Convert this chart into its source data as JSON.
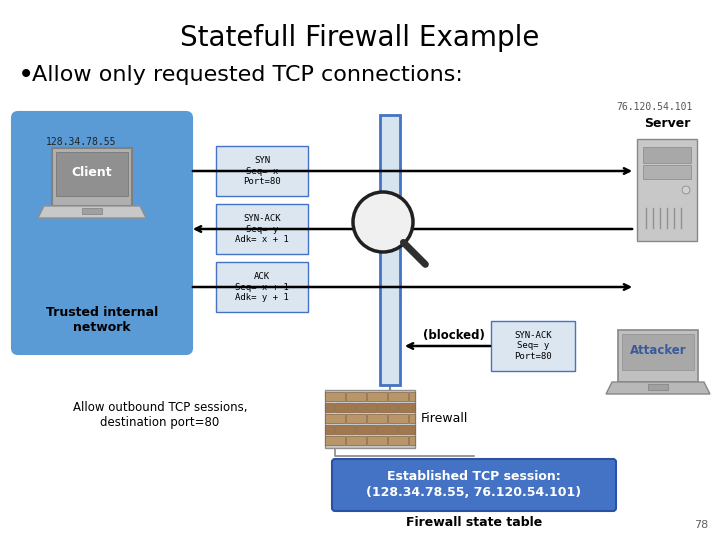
{
  "title": "Statefull Firewall Example",
  "bullet": "Allow only requested TCP connections:",
  "ip_server": "76.120.54.101",
  "ip_client": "128.34.78.55",
  "bg_color": "#ffffff",
  "title_fontsize": 20,
  "bullet_fontsize": 16,
  "trusted_box_color": "#5b9bd5",
  "firewall_bar_color": "#d6e4f0",
  "firewall_bar_edge": "#4472c4",
  "syn_box_color": "#dce6f1",
  "syn_box_edge": "#4472c4",
  "established_box_color": "#4472c4",
  "page_number": "78",
  "syn_label": "SYN\nSeq= x\nPort=80",
  "synack_label": "SYN-ACK\nSeq= y\nAdk= x + 1",
  "ack_label": "ACK\nSeq= x + 1\nAdk= y + 1",
  "synack_attacker_label": "SYN-ACK\nSeq= y\nPort=80",
  "blocked_text": "(blocked)",
  "allow_text": "Allow outbound TCP sessions,\ndestination port=80",
  "firewall_text": "Firewall",
  "established_line1": "Established TCP session:",
  "established_line2": "(128.34.78.55, 76.120.54.101)",
  "state_table_text": "Firewall state table",
  "client_text": "Client",
  "server_text": "Server",
  "attacker_text": "Attacker",
  "trusted_text": "Trusted internal\nnetwork"
}
